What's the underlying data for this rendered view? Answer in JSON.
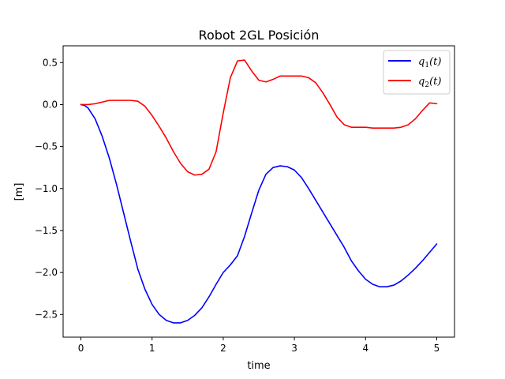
{
  "chart_data": {
    "type": "line",
    "title": "Robot 2GL Posición",
    "xlabel": "time",
    "ylabel": "[m]",
    "xlim": [
      -0.25,
      5.25
    ],
    "ylim": [
      -2.77,
      0.7
    ],
    "xticks": [
      0,
      1,
      2,
      3,
      4,
      5
    ],
    "xtick_labels": [
      "0",
      "1",
      "2",
      "3",
      "4",
      "5"
    ],
    "yticks": [
      0.5,
      0.0,
      -0.5,
      -1.0,
      -1.5,
      -2.0,
      -2.5
    ],
    "ytick_labels": [
      "0.5",
      "0.0",
      "−0.5",
      "−1.0",
      "−1.5",
      "−2.0",
      "−2.5"
    ],
    "grid": false,
    "legend_position": "top-right",
    "series": [
      {
        "name": "q1(t)",
        "legend_base": "q",
        "legend_sub": "1",
        "legend_arg": "(t)",
        "color": "#0000ff",
        "x": [
          0,
          0.05,
          0.1,
          0.2,
          0.3,
          0.4,
          0.5,
          0.6,
          0.7,
          0.8,
          0.9,
          1.0,
          1.1,
          1.2,
          1.3,
          1.4,
          1.5,
          1.6,
          1.7,
          1.8,
          1.9,
          2.0,
          2.1,
          2.2,
          2.3,
          2.4,
          2.5,
          2.6,
          2.7,
          2.8,
          2.9,
          3.0,
          3.1,
          3.2,
          3.3,
          3.4,
          3.5,
          3.6,
          3.7,
          3.8,
          3.9,
          4.0,
          4.1,
          4.2,
          4.3,
          4.4,
          4.5,
          4.6,
          4.7,
          4.8,
          4.9,
          5.0
        ],
        "y": [
          0.0,
          -0.01,
          -0.04,
          -0.17,
          -0.38,
          -0.64,
          -0.95,
          -1.29,
          -1.63,
          -1.96,
          -2.2,
          -2.38,
          -2.5,
          -2.57,
          -2.6,
          -2.6,
          -2.57,
          -2.51,
          -2.42,
          -2.29,
          -2.14,
          -2.0,
          -1.91,
          -1.8,
          -1.57,
          -1.29,
          -1.02,
          -0.83,
          -0.75,
          -0.73,
          -0.74,
          -0.78,
          -0.87,
          -1.0,
          -1.14,
          -1.28,
          -1.42,
          -1.56,
          -1.7,
          -1.86,
          -1.98,
          -2.08,
          -2.14,
          -2.17,
          -2.17,
          -2.15,
          -2.1,
          -2.03,
          -1.95,
          -1.86,
          -1.76,
          -1.66
        ]
      },
      {
        "name": "q2(t)",
        "legend_base": "q",
        "legend_sub": "2",
        "legend_arg": "(t)",
        "color": "#ff0000",
        "x": [
          0,
          0.1,
          0.2,
          0.3,
          0.4,
          0.5,
          0.6,
          0.7,
          0.8,
          0.9,
          1.0,
          1.1,
          1.2,
          1.3,
          1.4,
          1.5,
          1.6,
          1.7,
          1.8,
          1.9,
          2.0,
          2.1,
          2.2,
          2.3,
          2.4,
          2.5,
          2.6,
          2.7,
          2.8,
          2.9,
          3.0,
          3.1,
          3.2,
          3.3,
          3.4,
          3.5,
          3.6,
          3.7,
          3.8,
          3.9,
          4.0,
          4.1,
          4.2,
          4.3,
          4.4,
          4.5,
          4.6,
          4.7,
          4.8,
          4.9,
          5.0
        ],
        "y": [
          0.0,
          0.0,
          0.01,
          0.03,
          0.05,
          0.05,
          0.05,
          0.05,
          0.04,
          -0.02,
          -0.13,
          -0.26,
          -0.4,
          -0.56,
          -0.7,
          -0.8,
          -0.84,
          -0.83,
          -0.77,
          -0.56,
          -0.1,
          0.32,
          0.52,
          0.53,
          0.4,
          0.29,
          0.27,
          0.3,
          0.34,
          0.34,
          0.34,
          0.34,
          0.32,
          0.26,
          0.14,
          0.0,
          -0.15,
          -0.24,
          -0.27,
          -0.27,
          -0.27,
          -0.28,
          -0.28,
          -0.28,
          -0.28,
          -0.27,
          -0.24,
          -0.17,
          -0.07,
          0.02,
          0.01
        ]
      }
    ]
  }
}
